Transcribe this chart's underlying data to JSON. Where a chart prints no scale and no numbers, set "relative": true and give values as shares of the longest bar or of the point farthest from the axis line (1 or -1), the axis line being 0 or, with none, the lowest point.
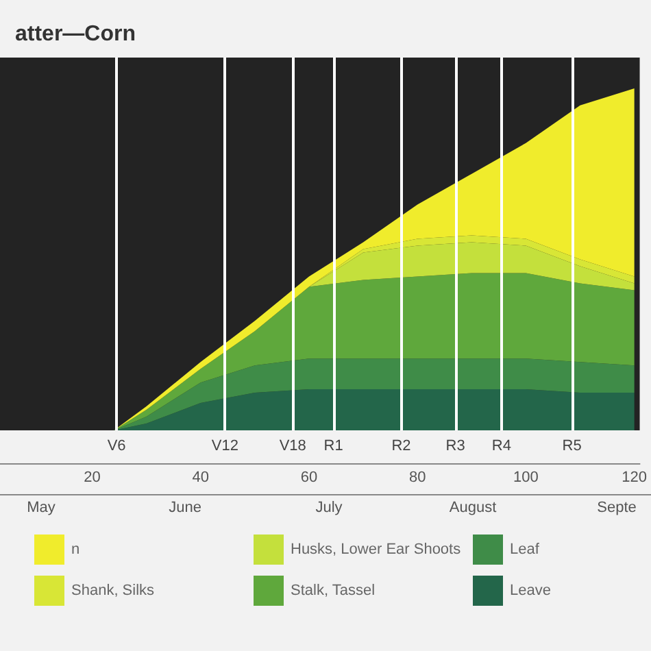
{
  "chart_data": {
    "type": "area",
    "title": "atter—Corn",
    "relative": true,
    "stacked": true,
    "legend": "bottom",
    "grid": false,
    "x": [
      24,
      30,
      40,
      50,
      60,
      70,
      80,
      90,
      100,
      110,
      120
    ],
    "xlim": [
      3,
      121
    ],
    "xticks": [
      20,
      40,
      60,
      80,
      100,
      120
    ],
    "series": [
      {
        "name": "Leave",
        "color": "#23664a",
        "values": [
          0,
          0.02,
          0.08,
          0.11,
          0.12,
          0.12,
          0.12,
          0.12,
          0.12,
          0.11,
          0.11
        ]
      },
      {
        "name": "Leaf",
        "color": "#3f8c48",
        "values": [
          0,
          0.02,
          0.06,
          0.08,
          0.09,
          0.09,
          0.09,
          0.09,
          0.09,
          0.09,
          0.08
        ]
      },
      {
        "name": "Stalk, Tassel",
        "color": "#5fa83c",
        "values": [
          0,
          0.02,
          0.04,
          0.1,
          0.21,
          0.23,
          0.24,
          0.25,
          0.25,
          0.23,
          0.22
        ]
      },
      {
        "name": "Husks, Lower Ear Shoots",
        "color": "#c4e03c",
        "values": [
          0,
          0,
          0,
          0,
          0,
          0.08,
          0.09,
          0.09,
          0.08,
          0.05,
          0.02
        ]
      },
      {
        "name": "Shank, Silks",
        "color": "#d8e636",
        "values": [
          0,
          0,
          0,
          0,
          0,
          0.01,
          0.02,
          0.02,
          0.02,
          0.02,
          0.02
        ]
      },
      {
        "name": "n",
        "color": "#f0ec2c",
        "values": [
          0,
          0.01,
          0.02,
          0.03,
          0.03,
          0.02,
          0.1,
          0.18,
          0.28,
          0.45,
          0.55
        ]
      }
    ],
    "ref_lines": [
      {
        "axis": "x",
        "value": 24.5,
        "label": "V6",
        "color": "#ffffff"
      },
      {
        "axis": "x",
        "value": 44.5,
        "label": "V12",
        "color": "#ffffff"
      },
      {
        "axis": "x",
        "value": 57,
        "label": "V18",
        "color": "#ffffff"
      },
      {
        "axis": "x",
        "value": 64.5,
        "label": "R1",
        "color": "#ffffff"
      },
      {
        "axis": "x",
        "value": 77,
        "label": "R2",
        "color": "#ffffff"
      },
      {
        "axis": "x",
        "value": 87,
        "label": "R3",
        "color": "#ffffff"
      },
      {
        "axis": "x",
        "value": 95.5,
        "label": "R4",
        "color": "#ffffff"
      },
      {
        "axis": "x",
        "value": 108.5,
        "label": "R5",
        "color": "#ffffff"
      }
    ],
    "annotations": [
      "May",
      "June",
      "July",
      "August",
      "Septe"
    ]
  }
}
